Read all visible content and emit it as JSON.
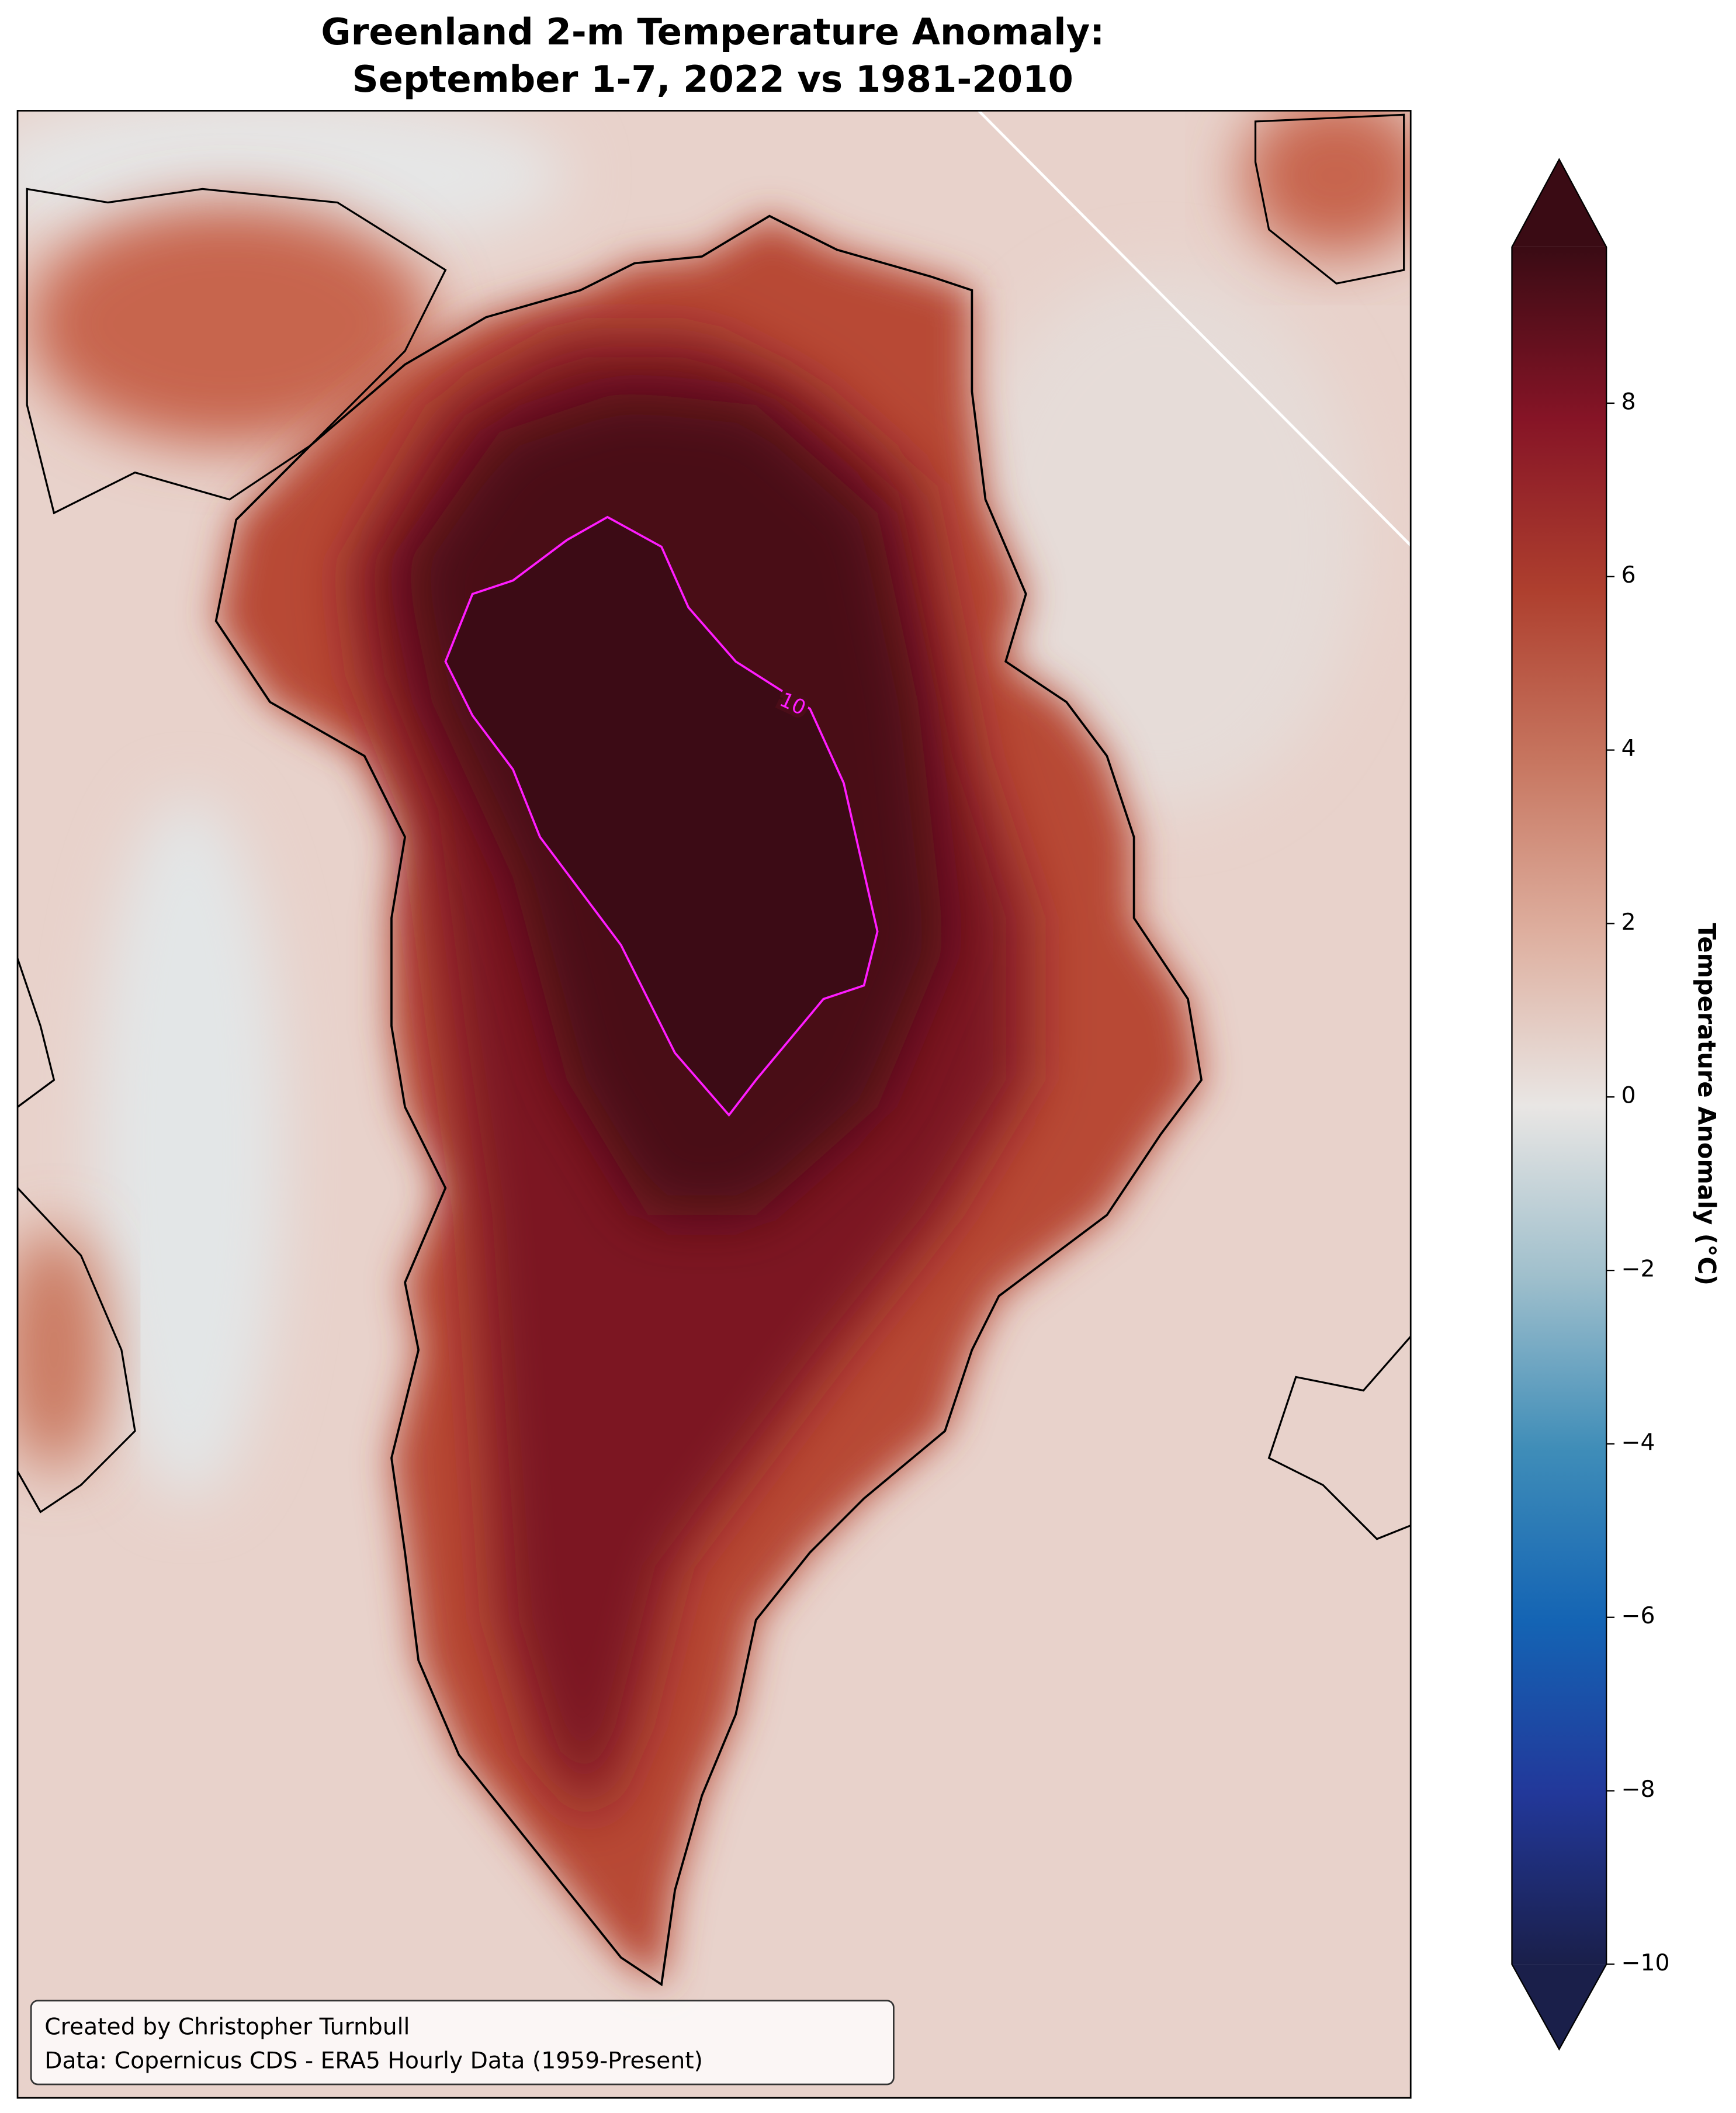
{
  "chart_data": {
    "type": "map",
    "title": [
      "Greenland 2-m Temperature Anomaly:",
      "September 1-7, 2022 vs 1981-2010"
    ],
    "colorbar": {
      "label": "Temperature Anomaly (°C)",
      "lim": [
        -10,
        9.8
      ],
      "ticks": [
        {
          "value": -10,
          "label": "−10"
        },
        {
          "value": -8,
          "label": "−8"
        },
        {
          "value": -6,
          "label": "−6"
        },
        {
          "value": -4,
          "label": "−4"
        },
        {
          "value": -2,
          "label": "−2"
        },
        0,
        2,
        4,
        6,
        8
      ]
    },
    "contour_levels": [
      10
    ],
    "credit": [
      "Created by Christopher Turnbull",
      "Data: Copernicus CDS - ERA5 Hourly Data (1959-Present)"
    ]
  }
}
